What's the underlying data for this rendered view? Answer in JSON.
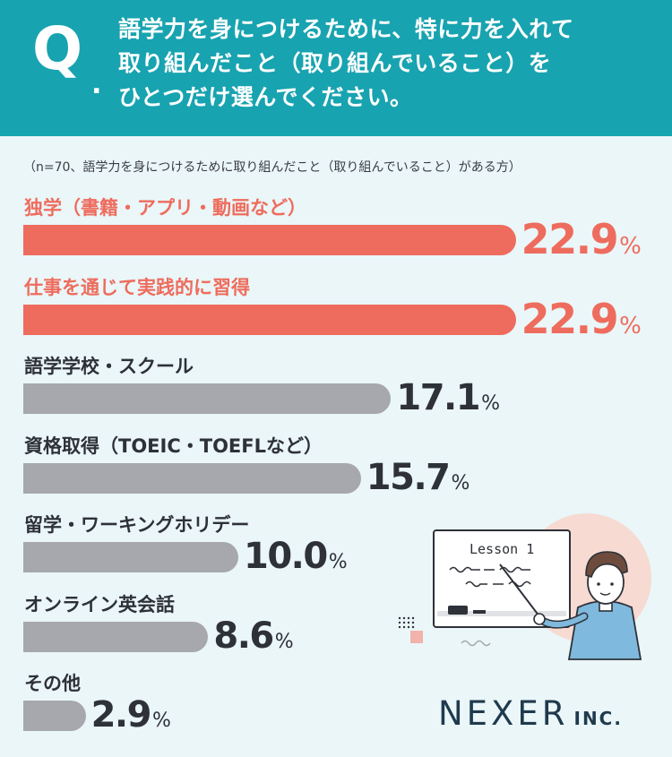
{
  "header": {
    "q_mark": "Q",
    "q_dot": ".",
    "question": "語学力を身につけるために、特に力を入れて\n取り組んだこと（取り組んでいること）を\nひとつだけ選んでください。"
  },
  "note": "（n=70、語学力を身につけるために取り組んだこと（取り組んでいること）がある方）",
  "colors": {
    "header_bg": "#18a3b0",
    "highlight": "#ee6c5d",
    "bar_default": "#a6a8ad",
    "background": "#eaf6f8"
  },
  "chart_data": {
    "type": "bar",
    "orientation": "horizontal",
    "unit": "%",
    "categories": [
      "独学（書籍・アプリ・動画など）",
      "仕事を通じて実践的に習得",
      "語学学校・スクール",
      "資格取得（TOEIC・TOEFLなど）",
      "留学・ワーキングホリデー",
      "オンライン英会話",
      "その他"
    ],
    "values": [
      22.9,
      22.9,
      17.1,
      15.7,
      10.0,
      8.6,
      2.9
    ],
    "value_labels": [
      "22.9",
      "22.9",
      "17.1",
      "15.7",
      "10.0",
      "8.6",
      "2.9"
    ],
    "highlighted": [
      true,
      true,
      false,
      false,
      false,
      false,
      false
    ]
  },
  "illustration": {
    "whiteboard_text": "Lesson 1"
  },
  "logo": {
    "main": "NEXER",
    "suffix": "INC."
  }
}
